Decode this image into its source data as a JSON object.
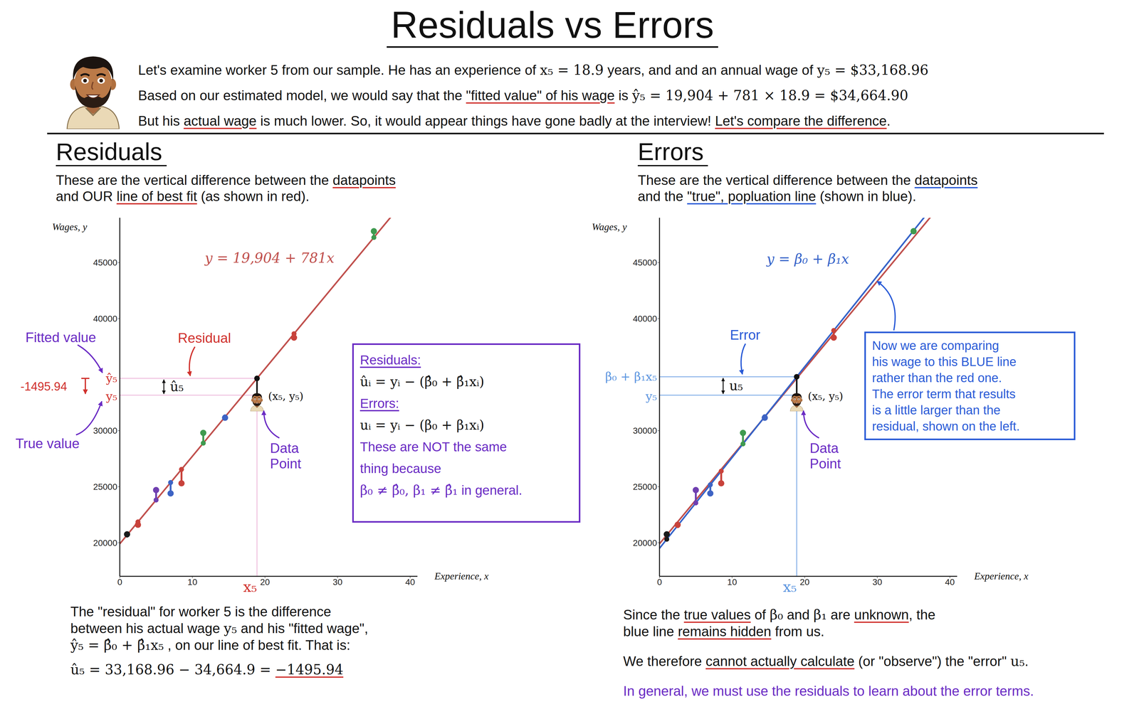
{
  "title": "Residuals vs Errors",
  "intro": [
    [
      "Let's examine worker 5 from our sample. He has an experience of ",
      {
        "math": "x₅ = 18.9"
      },
      " years, and and an annual wage of ",
      {
        "math": "y₅ = $33,168.96"
      }
    ],
    [
      "Based on our estimated model, we would say that the ",
      {
        "text": "\"fitted value\" of his wage",
        "underline": "#d0312d"
      },
      " is ",
      {
        "math": "ŷ₅ = 19,904 + 781 × 18.9 = $34,664.90"
      }
    ],
    [
      "But his ",
      {
        "text": "actual wage",
        "underline": "#d0312d"
      },
      " is much lower. So, it would appear things have gone badly at the interview! ",
      {
        "text": "Let's compare the difference",
        "underline": "#d0312d"
      },
      "."
    ]
  ],
  "panels": [
    {
      "heading": "Residuals",
      "description": [
        [
          "These are the vertical difference between the ",
          {
            "text": "datapoints",
            "underline": "#d0312d"
          }
        ],
        [
          "and OUR ",
          {
            "text": "line of best fit",
            "underline": "#d0312d"
          },
          " (as shown in red)."
        ]
      ],
      "annotations": {
        "fitted_value": "Fitted value",
        "true_value": "True value",
        "residual": "Residual",
        "difference": -1495.94,
        "fitted_tick": "ŷ₅",
        "true_tick": "y₅",
        "gap": "û₅",
        "point": "(x₅, y₅)",
        "data_point": [
          "Data",
          "Point"
        ],
        "x_mark": "x₅"
      },
      "box": {
        "color": "#6a2bc4",
        "lines": [
          [
            {
              "text": "Residuals:",
              "underline": "#6a2bc4"
            }
          ],
          [
            {
              "math": "ûᵢ = yᵢ − (β̂₀ + β̂₁xᵢ)",
              "color": "#111111"
            }
          ],
          [
            {
              "text": "Errors:",
              "underline": "#6a2bc4"
            }
          ],
          [
            {
              "math": "uᵢ = yᵢ − (β₀ + β₁xᵢ)",
              "color": "#111111"
            }
          ],
          [
            "These are NOT the same"
          ],
          [
            "thing because"
          ],
          [
            {
              "math": "β₀ ≠ β̂₀, β₁ ≠ β̂₁"
            },
            "  in general."
          ]
        ]
      },
      "footer": [
        [
          [
            "The \"residual\" for worker 5 is the difference"
          ],
          [
            "between his actual wage ",
            {
              "math": "y₅"
            },
            " and his \"fitted wage\","
          ],
          [
            {
              "math": "ŷ₅ = β̂₀ + β̂₁x₅"
            },
            " , on our line of best fit. That is:"
          ]
        ],
        [
          [
            {
              "math": "û₅ = 33,168.96 − 34,664.9 = "
            },
            {
              "math": "−1495.94",
              "underline": "#d0312d"
            }
          ]
        ]
      ]
    },
    {
      "heading": "Errors",
      "description": [
        [
          "These are the vertical difference between the ",
          {
            "text": "datapoints",
            "underline": "#2a5bd7"
          }
        ],
        [
          "and the ",
          {
            "text": "\"true\", popluation line",
            "underline": "#2a5bd7"
          },
          " (shown in blue)."
        ]
      ],
      "annotations": {
        "error": "Error",
        "fitted_tick": "β₀ + β₁x₅",
        "true_tick": "y₅",
        "gap": "u₅",
        "point": "(x₅, y₅)",
        "data_point": [
          "Data",
          "Point"
        ],
        "x_mark": "x₅"
      },
      "box": {
        "color": "#2a5bd7",
        "lines": [
          [
            "Now we are comparing"
          ],
          [
            "his wage to this BLUE line"
          ],
          [
            "rather than the red one."
          ],
          [
            "The error term that results"
          ],
          [
            "is a little larger than the"
          ],
          [
            "residual, shown on the left."
          ]
        ]
      },
      "footer": [
        [
          [
            "Since the ",
            {
              "text": "true values",
              "underline": "#d0312d"
            },
            " of ",
            {
              "math": "β₀"
            },
            " and ",
            {
              "math": "β₁"
            },
            " are ",
            {
              "text": "unknown",
              "underline": "#d0312d"
            },
            ", the"
          ],
          [
            "blue line ",
            {
              "text": "remains hidden",
              "underline": "#d0312d"
            },
            " from us."
          ]
        ],
        [
          [
            "We therefore ",
            {
              "text": "cannot actually calculate",
              "underline": "#d0312d"
            },
            " (or \"observe\") the \"error\" ",
            {
              "math": "u₅"
            },
            "."
          ]
        ],
        [
          [
            {
              "text": "In general, we must use the residuals to learn about the error terms.",
              "color": "#6a2bc4"
            }
          ]
        ]
      ]
    }
  ],
  "chart_data": [
    {
      "type": "scatter",
      "x_title": "Experience, x",
      "y_title": "Wages, y",
      "xlim": [
        0,
        41
      ],
      "ylim": [
        17000,
        49000
      ],
      "xticks": [
        0,
        10,
        20,
        30,
        40
      ],
      "yticks": [
        20000,
        25000,
        30000,
        40000,
        45000
      ],
      "x": [
        1,
        2.5,
        5,
        7,
        8.5,
        11.5,
        14.5,
        24,
        35
      ],
      "values": [
        20750,
        21600,
        24700,
        24400,
        25300,
        29800,
        31150,
        38300,
        47800
      ],
      "colors": [
        "#1a1a1a",
        "#c8423b",
        "#6f3fb0",
        "#3d63c4",
        "#c8423b",
        "#3f9a4f",
        "#3d63c4",
        "#c8423b",
        "#3f9a4f"
      ],
      "worker": {
        "x": 18.9,
        "y": 33168.96
      },
      "lines": [
        {
          "intercept": 19904,
          "slope": 781,
          "label": "y = 19,904 + 781x",
          "color": "#c0504d"
        }
      ]
    },
    {
      "type": "scatter",
      "x_title": "Experience, x",
      "y_title": "Wages, y",
      "xlim": [
        0,
        41
      ],
      "ylim": [
        17000,
        49000
      ],
      "xticks": [
        0,
        10,
        20,
        30,
        40
      ],
      "yticks": [
        20000,
        25000,
        30000,
        40000,
        45000
      ],
      "x": [
        1,
        2.5,
        5,
        7,
        8.5,
        11.5,
        14.5,
        24,
        35
      ],
      "values": [
        20750,
        21600,
        24700,
        24400,
        25300,
        29800,
        31150,
        38300,
        47800
      ],
      "colors": [
        "#1a1a1a",
        "#c8423b",
        "#6f3fb0",
        "#3d63c4",
        "#c8423b",
        "#3f9a4f",
        "#3d63c4",
        "#c8423b",
        "#3f9a4f"
      ],
      "worker": {
        "x": 18.9,
        "y": 33168.96
      },
      "lines": [
        {
          "intercept": 19904,
          "slope": 781,
          "color": "#c0504d"
        },
        {
          "intercept": 19500,
          "slope": 810,
          "label": "y = β₀ + β₁x",
          "color": "#3563c9"
        }
      ]
    }
  ]
}
